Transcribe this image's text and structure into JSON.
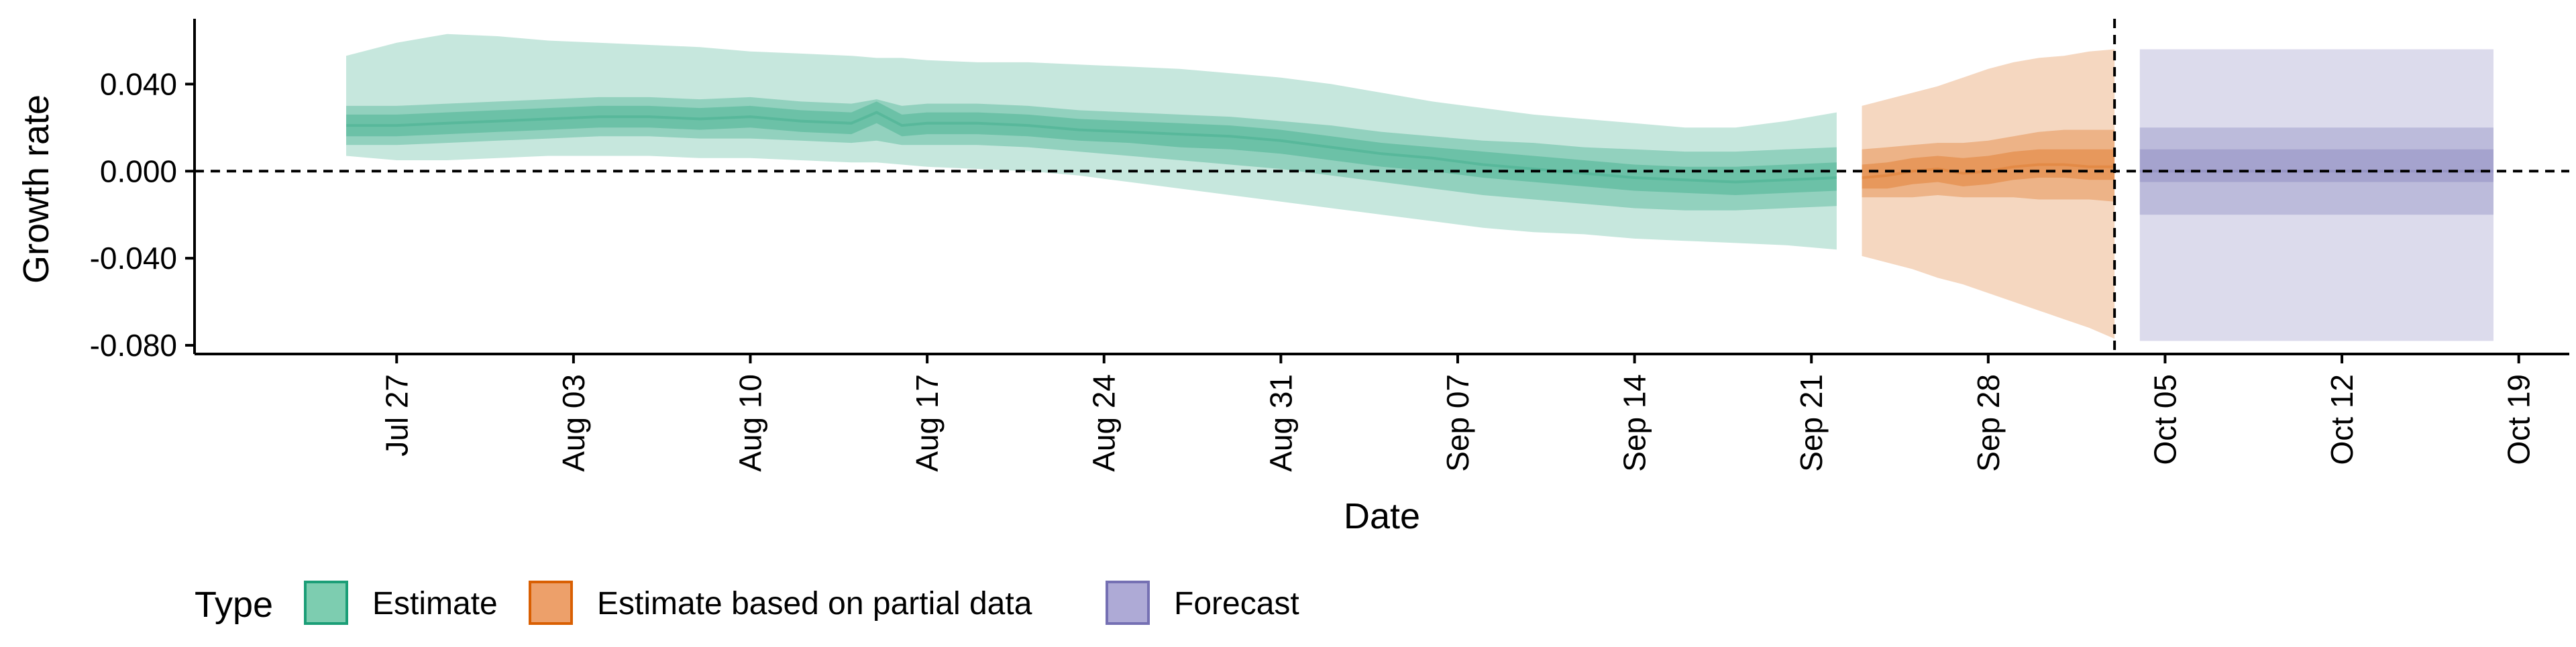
{
  "chart_data": {
    "type": "area",
    "title": "",
    "xlabel": "Date",
    "ylabel": "Growth rate",
    "x_tick_labels": [
      "Jul 27",
      "Aug 03",
      "Aug 10",
      "Aug 17",
      "Aug 24",
      "Aug 31",
      "Sep 07",
      "Sep 14",
      "Sep 21",
      "Sep 28",
      "Oct 05",
      "Oct 12",
      "Oct 19"
    ],
    "x_tick_dates": [
      "2021-07-27",
      "2021-08-03",
      "2021-08-10",
      "2021-08-17",
      "2021-08-24",
      "2021-08-31",
      "2021-09-07",
      "2021-09-14",
      "2021-09-21",
      "2021-09-28",
      "2021-10-05",
      "2021-10-12",
      "2021-10-19"
    ],
    "y_tick_labels": [
      "0.040",
      "0.000",
      "-0.040",
      "-0.080"
    ],
    "y_tick_values": [
      0.04,
      0.0,
      -0.04,
      -0.08
    ],
    "xlim": [
      "2021-07-19",
      "2021-10-21"
    ],
    "ylim": [
      -0.084,
      0.07
    ],
    "reference_lines": {
      "horizontal_y": 0.0,
      "vertical_x": "2021-10-03",
      "style": "dashed"
    },
    "legend": {
      "title": "Type",
      "position": "bottom",
      "items": [
        {
          "label": "Estimate",
          "fill": "#7dcdb0",
          "border": "#1b9e77"
        },
        {
          "label": "Estimate based on partial data",
          "fill": "#eda06a",
          "border": "#d95f02"
        },
        {
          "label": "Forecast",
          "fill": "#aeaad6",
          "border": "#7570b3"
        }
      ]
    },
    "series": [
      {
        "name": "Estimate",
        "color": "#1b9e77",
        "x": [
          "2021-07-25",
          "2021-07-27",
          "2021-07-29",
          "2021-07-31",
          "2021-08-02",
          "2021-08-04",
          "2021-08-06",
          "2021-08-08",
          "2021-08-10",
          "2021-08-12",
          "2021-08-14",
          "2021-08-15",
          "2021-08-16",
          "2021-08-17",
          "2021-08-19",
          "2021-08-21",
          "2021-08-23",
          "2021-08-25",
          "2021-08-27",
          "2021-08-29",
          "2021-08-31",
          "2021-09-02",
          "2021-09-04",
          "2021-09-06",
          "2021-09-08",
          "2021-09-10",
          "2021-09-12",
          "2021-09-14",
          "2021-09-16",
          "2021-09-18",
          "2021-09-20",
          "2021-09-22"
        ],
        "median": [
          0.021,
          0.021,
          0.022,
          0.023,
          0.024,
          0.025,
          0.025,
          0.024,
          0.025,
          0.023,
          0.022,
          0.027,
          0.021,
          0.022,
          0.022,
          0.021,
          0.019,
          0.018,
          0.017,
          0.016,
          0.014,
          0.011,
          0.008,
          0.006,
          0.003,
          0.001,
          -0.001,
          -0.003,
          -0.004,
          -0.005,
          -0.004,
          -0.003
        ],
        "lower_20": [
          0.016,
          0.016,
          0.017,
          0.018,
          0.019,
          0.02,
          0.02,
          0.019,
          0.02,
          0.018,
          0.017,
          0.022,
          0.016,
          0.017,
          0.017,
          0.016,
          0.014,
          0.013,
          0.011,
          0.01,
          0.008,
          0.005,
          0.002,
          0.0,
          -0.003,
          -0.005,
          -0.007,
          -0.009,
          -0.01,
          -0.011,
          -0.01,
          -0.009
        ],
        "upper_20": [
          0.026,
          0.026,
          0.027,
          0.028,
          0.029,
          0.03,
          0.03,
          0.029,
          0.03,
          0.028,
          0.027,
          0.032,
          0.026,
          0.027,
          0.027,
          0.026,
          0.024,
          0.023,
          0.022,
          0.021,
          0.019,
          0.016,
          0.013,
          0.011,
          0.009,
          0.007,
          0.005,
          0.003,
          0.002,
          0.002,
          0.003,
          0.004
        ],
        "lower_50": [
          0.012,
          0.012,
          0.013,
          0.014,
          0.015,
          0.016,
          0.016,
          0.015,
          0.015,
          0.014,
          0.013,
          0.014,
          0.012,
          0.012,
          0.012,
          0.011,
          0.009,
          0.007,
          0.005,
          0.003,
          0.001,
          -0.002,
          -0.005,
          -0.008,
          -0.011,
          -0.013,
          -0.015,
          -0.017,
          -0.018,
          -0.018,
          -0.017,
          -0.016
        ],
        "upper_50": [
          0.03,
          0.03,
          0.031,
          0.032,
          0.033,
          0.034,
          0.034,
          0.033,
          0.034,
          0.032,
          0.031,
          0.033,
          0.03,
          0.031,
          0.031,
          0.03,
          0.028,
          0.027,
          0.026,
          0.025,
          0.023,
          0.021,
          0.018,
          0.016,
          0.014,
          0.013,
          0.011,
          0.01,
          0.009,
          0.009,
          0.01,
          0.011
        ],
        "lower_90": [
          0.007,
          0.005,
          0.005,
          0.006,
          0.007,
          0.007,
          0.007,
          0.006,
          0.006,
          0.005,
          0.004,
          0.004,
          0.003,
          0.002,
          0.001,
          0.0,
          -0.002,
          -0.005,
          -0.008,
          -0.011,
          -0.014,
          -0.017,
          -0.02,
          -0.023,
          -0.026,
          -0.028,
          -0.029,
          -0.031,
          -0.032,
          -0.033,
          -0.034,
          -0.036
        ],
        "upper_90": [
          0.053,
          0.059,
          0.063,
          0.062,
          0.06,
          0.059,
          0.058,
          0.057,
          0.055,
          0.054,
          0.053,
          0.052,
          0.052,
          0.051,
          0.05,
          0.05,
          0.049,
          0.048,
          0.047,
          0.045,
          0.043,
          0.04,
          0.036,
          0.032,
          0.029,
          0.026,
          0.024,
          0.022,
          0.02,
          0.02,
          0.023,
          0.027
        ]
      },
      {
        "name": "Estimate based on partial data",
        "color": "#d95f02",
        "x": [
          "2021-09-23",
          "2021-09-24",
          "2021-09-25",
          "2021-09-26",
          "2021-09-27",
          "2021-09-28",
          "2021-09-29",
          "2021-09-30",
          "2021-10-01",
          "2021-10-02",
          "2021-10-03"
        ],
        "median": [
          -0.003,
          -0.002,
          0.0,
          0.001,
          -0.001,
          0.0,
          0.002,
          0.003,
          0.003,
          0.002,
          0.002
        ],
        "lower_20": [
          -0.008,
          -0.008,
          -0.006,
          -0.005,
          -0.007,
          -0.006,
          -0.004,
          -0.003,
          -0.003,
          -0.004,
          -0.004
        ],
        "upper_20": [
          0.003,
          0.004,
          0.006,
          0.007,
          0.006,
          0.007,
          0.009,
          0.01,
          0.01,
          0.01,
          0.01
        ],
        "lower_50": [
          -0.012,
          -0.012,
          -0.012,
          -0.011,
          -0.012,
          -0.012,
          -0.012,
          -0.013,
          -0.013,
          -0.013,
          -0.014
        ],
        "upper_50": [
          0.01,
          0.011,
          0.012,
          0.013,
          0.013,
          0.014,
          0.016,
          0.018,
          0.019,
          0.019,
          0.019
        ],
        "lower_90": [
          -0.039,
          -0.042,
          -0.045,
          -0.049,
          -0.052,
          -0.056,
          -0.06,
          -0.064,
          -0.068,
          -0.072,
          -0.077
        ],
        "upper_90": [
          0.03,
          0.033,
          0.036,
          0.039,
          0.043,
          0.047,
          0.05,
          0.052,
          0.053,
          0.055,
          0.056
        ]
      },
      {
        "name": "Forecast",
        "color": "#7570b3",
        "x": [
          "2021-10-04",
          "2021-10-18"
        ],
        "median": [
          0.0,
          0.0
        ],
        "lower_20": [
          -0.005,
          -0.005
        ],
        "upper_20": [
          0.01,
          0.01
        ],
        "lower_50": [
          -0.02,
          -0.02
        ],
        "upper_50": [
          0.02,
          0.02
        ],
        "lower_90": [
          -0.078,
          -0.078
        ],
        "upper_90": [
          0.056,
          0.056
        ]
      }
    ]
  }
}
